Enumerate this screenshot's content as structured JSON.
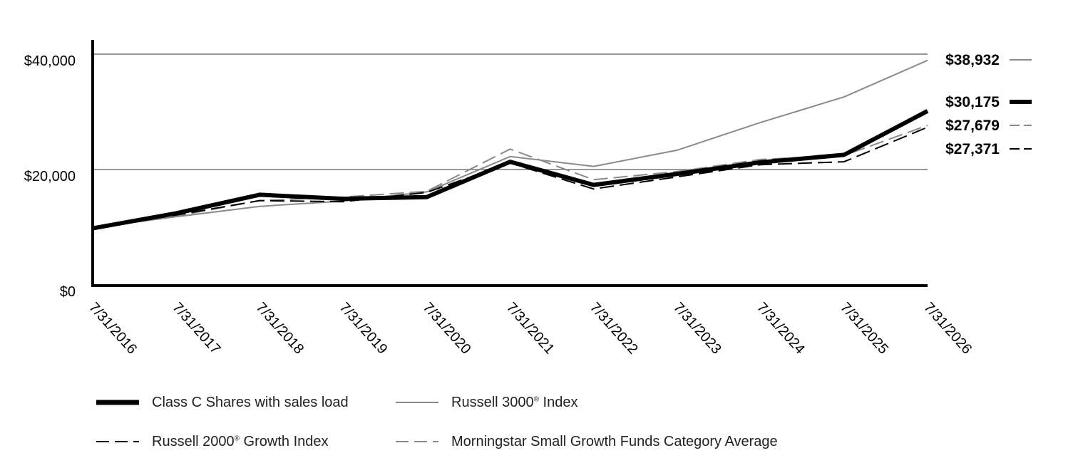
{
  "chart_data": {
    "type": "line",
    "x": [
      "7/31/2016",
      "7/31/2017",
      "7/31/2018",
      "7/31/2019",
      "7/31/2020",
      "7/31/2021",
      "7/31/2022",
      "7/31/2023",
      "7/31/2024",
      "7/31/2025",
      "7/31/2026"
    ],
    "ylim": [
      0,
      40000
    ],
    "y_ticks": [
      "$0",
      "$20,000",
      "$40,000"
    ],
    "y_tick_values": [
      0,
      20000,
      40000
    ],
    "grid": "horizontal at $20,000 and $40,000",
    "legend_placement": "bottom",
    "series": [
      {
        "name": "Class C Shares with sales load",
        "style": "thick-solid",
        "color": "#000000",
        "values": [
          9900,
          12500,
          15700,
          15000,
          15300,
          21400,
          17400,
          19300,
          21300,
          22600,
          30175
        ],
        "end_label": "$30,175"
      },
      {
        "name": "Russell 3000® Index",
        "style": "thin-solid",
        "color": "#8a8a8a",
        "values": [
          10000,
          11900,
          13700,
          14600,
          16200,
          22300,
          20600,
          23400,
          28200,
          32600,
          38932
        ],
        "end_label": "$38,932"
      },
      {
        "name": "Russell 2000® Growth Index",
        "style": "dashed",
        "color": "#000000",
        "values": [
          10000,
          12200,
          14700,
          14500,
          16100,
          21200,
          16700,
          18800,
          20900,
          21400,
          27371
        ],
        "end_label": "$27,371"
      },
      {
        "name": "Morningstar Small Growth Funds Category Average",
        "style": "dashed",
        "color": "#8a8a8a",
        "values": [
          10000,
          12000,
          14700,
          15300,
          16300,
          23600,
          18300,
          19700,
          21800,
          22500,
          27679
        ],
        "end_label": "$27,679"
      }
    ]
  },
  "legend": {
    "items": [
      {
        "label": "Class C Shares with sales load",
        "sup": "",
        "suffix": ""
      },
      {
        "label": "Russell 3000",
        "sup": "®",
        "suffix": " Index"
      },
      {
        "label": "Russell 2000",
        "sup": "®",
        "suffix": " Growth Index"
      },
      {
        "label": "Morningstar Small Growth Funds Category Average",
        "sup": "",
        "suffix": ""
      }
    ]
  }
}
